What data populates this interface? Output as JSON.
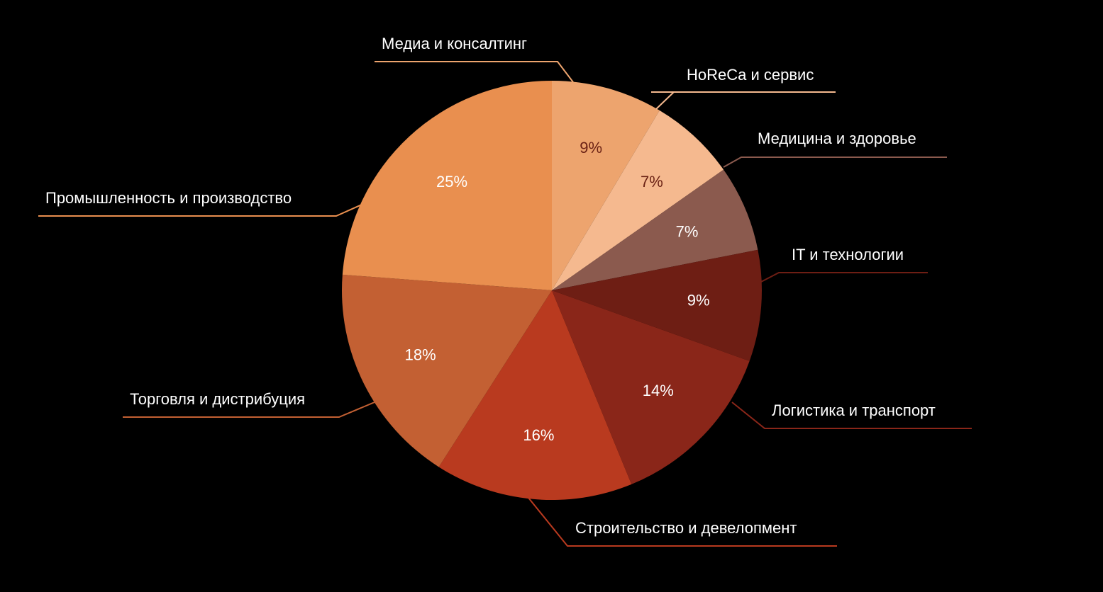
{
  "chart_data": {
    "type": "pie",
    "categories": [
      "Медиа и консалтинг",
      "HoReCa и сервис",
      "Медицина и здоровье",
      "IT и технологии",
      "Логистика и транспорт",
      "Строительство и девелопмент",
      "Торговля и дистрибуция",
      "Промышленность и производство"
    ],
    "values": [
      9,
      7,
      7,
      9,
      14,
      16,
      18,
      25
    ],
    "value_labels": [
      "9%",
      "7%",
      "7%",
      "9%",
      "14%",
      "16%",
      "18%",
      "25%"
    ],
    "colors": [
      "#eda46e",
      "#f5b98f",
      "#8b5a4e",
      "#6e1e14",
      "#8a2619",
      "#b93a1f",
      "#c36033",
      "#e98f4f"
    ]
  }
}
